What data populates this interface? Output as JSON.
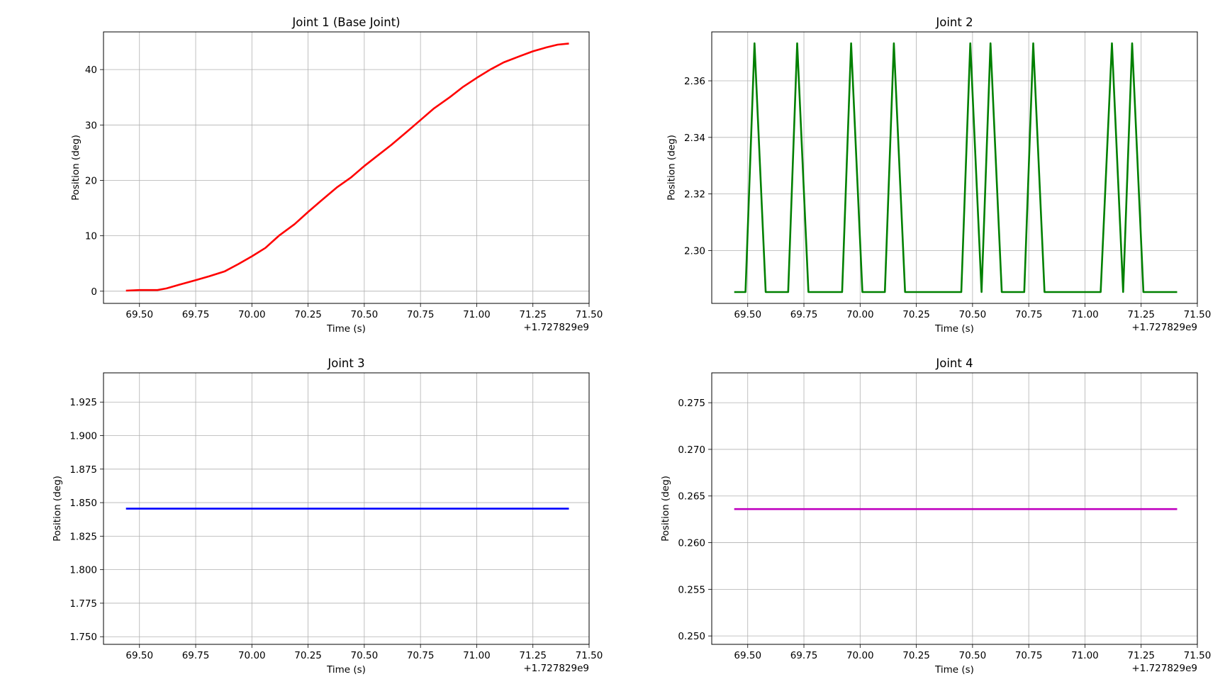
{
  "chart_data": [
    {
      "id": "joint1",
      "type": "line",
      "title": "Joint 1 (Base Joint)",
      "xlabel": "Time (s)",
      "ylabel": "Position (deg)",
      "x_offset_label": "+1.727829e9",
      "xlim": [
        69.34,
        71.5
      ],
      "ylim": [
        -2.2,
        46.8
      ],
      "xticks": [
        "69.50",
        "69.75",
        "70.00",
        "70.25",
        "70.50",
        "70.75",
        "71.00",
        "71.25",
        "71.50"
      ],
      "yticks": [
        "0",
        "10",
        "20",
        "30",
        "40"
      ],
      "grid": true,
      "color": "#ff0000",
      "series": [
        {
          "x": [
            69.44,
            69.5,
            69.58,
            69.62,
            69.68,
            69.75,
            69.81,
            69.88,
            69.94,
            70.0,
            70.06,
            70.12,
            70.19,
            70.25,
            70.31,
            70.38,
            70.44,
            70.5,
            70.56,
            70.62,
            70.69,
            70.75,
            70.81,
            70.88,
            70.94,
            71.0,
            71.06,
            71.12,
            71.19,
            71.25,
            71.31,
            71.36,
            71.41
          ],
          "y": [
            0.1,
            0.2,
            0.2,
            0.5,
            1.2,
            2.0,
            2.7,
            3.6,
            4.9,
            6.3,
            7.8,
            10.0,
            12.1,
            14.3,
            16.4,
            18.8,
            20.5,
            22.6,
            24.5,
            26.4,
            28.8,
            30.9,
            33.0,
            35.0,
            36.9,
            38.5,
            40.0,
            41.3,
            42.4,
            43.3,
            44.0,
            44.5,
            44.7
          ]
        }
      ]
    },
    {
      "id": "joint2",
      "type": "line",
      "title": "Joint 2",
      "xlabel": "Time (s)",
      "ylabel": "Position (deg)",
      "x_offset_label": "+1.727829e9",
      "xlim": [
        69.34,
        71.5
      ],
      "ylim": [
        2.2813,
        2.3773
      ],
      "xticks": [
        "69.50",
        "69.75",
        "70.00",
        "70.25",
        "70.50",
        "70.75",
        "71.00",
        "71.25",
        "71.50"
      ],
      "yticks": [
        "2.30",
        "2.32",
        "2.34",
        "2.36"
      ],
      "grid": true,
      "color": "#008000",
      "series": [
        {
          "x": [
            69.44,
            69.49,
            69.53,
            69.58,
            69.68,
            69.72,
            69.77,
            69.92,
            69.96,
            70.01,
            70.11,
            70.15,
            70.2,
            70.45,
            70.49,
            70.54,
            70.58,
            70.63,
            70.73,
            70.77,
            70.82,
            71.07,
            71.12,
            71.17,
            71.21,
            71.26,
            71.41
          ],
          "y": [
            2.2853,
            2.2853,
            2.3733,
            2.2853,
            2.2853,
            2.3733,
            2.2853,
            2.2853,
            2.3733,
            2.2853,
            2.2853,
            2.3733,
            2.2853,
            2.2853,
            2.3733,
            2.2853,
            2.3733,
            2.2853,
            2.2853,
            2.3733,
            2.2853,
            2.2853,
            2.3733,
            2.2853,
            2.3733,
            2.2853,
            2.2853
          ]
        }
      ]
    },
    {
      "id": "joint3",
      "type": "line",
      "title": "Joint 3",
      "xlabel": "Time (s)",
      "ylabel": "Position (deg)",
      "x_offset_label": "+1.727829e9",
      "xlim": [
        69.34,
        71.5
      ],
      "ylim": [
        1.7443,
        1.9468
      ],
      "xticks": [
        "69.50",
        "69.75",
        "70.00",
        "70.25",
        "70.50",
        "70.75",
        "71.00",
        "71.25",
        "71.50"
      ],
      "yticks": [
        "1.750",
        "1.775",
        "1.800",
        "1.825",
        "1.850",
        "1.875",
        "1.900",
        "1.925"
      ],
      "grid": true,
      "color": "#0000ff",
      "series": [
        {
          "x": [
            69.44,
            71.41
          ],
          "y": [
            1.8455,
            1.8455
          ]
        }
      ]
    },
    {
      "id": "joint4",
      "type": "line",
      "title": "Joint 4",
      "xlabel": "Time (s)",
      "ylabel": "Position (deg)",
      "x_offset_label": "+1.727829e9",
      "xlim": [
        69.34,
        71.5
      ],
      "ylim": [
        0.2491,
        0.2782
      ],
      "xticks": [
        "69.50",
        "69.75",
        "70.00",
        "70.25",
        "70.50",
        "70.75",
        "71.00",
        "71.25",
        "71.50"
      ],
      "yticks": [
        "0.250",
        "0.255",
        "0.260",
        "0.265",
        "0.270",
        "0.275"
      ],
      "grid": true,
      "color": "#bf00bf",
      "series": [
        {
          "x": [
            69.44,
            71.41
          ],
          "y": [
            0.2636,
            0.2636
          ]
        }
      ]
    }
  ]
}
